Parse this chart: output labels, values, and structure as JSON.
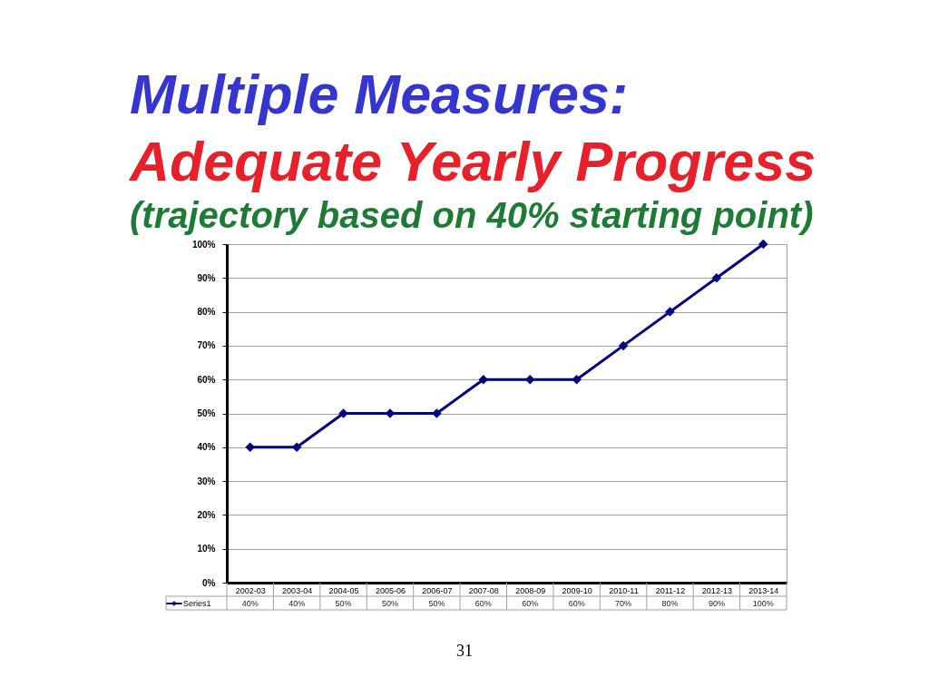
{
  "chart_data": {
    "type": "line",
    "title": "Multiple Measures:\nAdequate Yearly Progress",
    "subtitle": "(trajectory based on 40% starting point)",
    "categories": [
      "2002-03",
      "2003-04",
      "2004-05",
      "2005-06",
      "2006-07",
      "2007-08",
      "2008-09",
      "2009-10",
      "2010-11",
      "2011-12",
      "2012-13",
      "2013-14"
    ],
    "series": [
      {
        "name": "Series1",
        "color": "#000080",
        "values": [
          40,
          40,
          50,
          50,
          50,
          60,
          60,
          60,
          70,
          80,
          90,
          100
        ],
        "value_labels": [
          "40%",
          "40%",
          "50%",
          "50%",
          "50%",
          "60%",
          "60%",
          "60%",
          "70%",
          "80%",
          "90%",
          "100%"
        ]
      }
    ],
    "ylim": [
      0,
      100
    ],
    "yticks": [
      {
        "value": 0,
        "label": "0%"
      },
      {
        "value": 10,
        "label": "10%"
      },
      {
        "value": 20,
        "label": "20%"
      },
      {
        "value": 30,
        "label": "30%"
      },
      {
        "value": 40,
        "label": "40%"
      },
      {
        "value": 50,
        "label": "50%"
      },
      {
        "value": 60,
        "label": "60%"
      },
      {
        "value": 70,
        "label": "70%"
      },
      {
        "value": 80,
        "label": "80%"
      },
      {
        "value": 90,
        "label": "90%"
      },
      {
        "value": 100,
        "label": "100%"
      }
    ],
    "grid": "y",
    "legend": "bottom left",
    "marker": "diamond",
    "line_style": "solid",
    "annotations": [
      "31"
    ]
  }
}
